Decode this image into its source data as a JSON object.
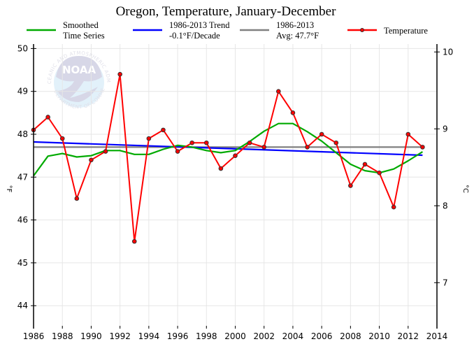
{
  "chart_data": {
    "type": "line",
    "title": "Oregon, Temperature, January-December",
    "xlabel": "",
    "ylabel": "°F",
    "ylabel_right": "°C",
    "xlim": [
      1986,
      2014
    ],
    "ylim": [
      43.45,
      50.1
    ],
    "ylim_right_ticks": [
      7,
      8,
      9,
      10
    ],
    "grid": true,
    "legend_position": "top",
    "x_ticks": [
      1986,
      1988,
      1990,
      1992,
      1994,
      1996,
      1998,
      2000,
      2002,
      2004,
      2006,
      2008,
      2010,
      2012,
      2014
    ],
    "y_ticks": [
      44,
      45,
      46,
      47,
      48,
      49,
      50
    ],
    "x": [
      1986,
      1987,
      1988,
      1989,
      1990,
      1991,
      1992,
      1993,
      1994,
      1995,
      1996,
      1997,
      1998,
      1999,
      2000,
      2001,
      2002,
      2003,
      2004,
      2005,
      2006,
      2007,
      2008,
      2009,
      2010,
      2011,
      2012,
      2013
    ],
    "series": [
      {
        "name": "Temperature",
        "color": "#ff0000",
        "markers": true,
        "values": [
          48.1,
          48.4,
          47.9,
          46.5,
          47.4,
          47.6,
          49.4,
          45.5,
          47.9,
          48.1,
          47.6,
          47.8,
          47.8,
          47.2,
          47.5,
          47.8,
          47.7,
          49.0,
          48.5,
          47.7,
          48.0,
          47.8,
          46.8,
          47.3,
          47.1,
          46.3,
          48.0,
          47.7
        ]
      },
      {
        "name": "Smoothed Time Series",
        "color": "#00aa00",
        "markers": false,
        "values": [
          47.03,
          47.49,
          47.55,
          47.47,
          47.5,
          47.62,
          47.62,
          47.53,
          47.53,
          47.65,
          47.74,
          47.7,
          47.62,
          47.57,
          47.62,
          47.83,
          48.07,
          48.25,
          48.25,
          48.06,
          47.84,
          47.57,
          47.3,
          47.15,
          47.1,
          47.19,
          47.38,
          47.59
        ]
      },
      {
        "name": "1986-2013 Trend",
        "color": "#0000ff",
        "markers": false,
        "x": [
          1986,
          2013
        ],
        "values": [
          47.82,
          47.51
        ]
      },
      {
        "name": "1986-2013 Avg",
        "color": "#808080",
        "markers": false,
        "x": [
          1986,
          2013
        ],
        "values": [
          47.7,
          47.7
        ]
      }
    ],
    "legend": [
      {
        "line1": "Smoothed",
        "line2": "Time Series",
        "color": "#00aa00",
        "marker": false
      },
      {
        "line1": "1986-2013 Trend",
        "line2": "-0.1°F/Decade",
        "color": "#0000ff",
        "marker": false
      },
      {
        "line1": "1986-2013",
        "line2": "Avg: 47.7°F",
        "color": "#808080",
        "marker": false
      },
      {
        "line1": "Temperature",
        "line2": "",
        "color": "#ff0000",
        "marker": true
      }
    ]
  },
  "watermark": {
    "logo_text": "NOAA",
    "ring_text_top": "NATIONAL OCEANIC AND ATMOSPHERIC ADMINISTRATION",
    "ring_text_bottom": "U.S. DEPARTMENT OF COMMERCE"
  }
}
